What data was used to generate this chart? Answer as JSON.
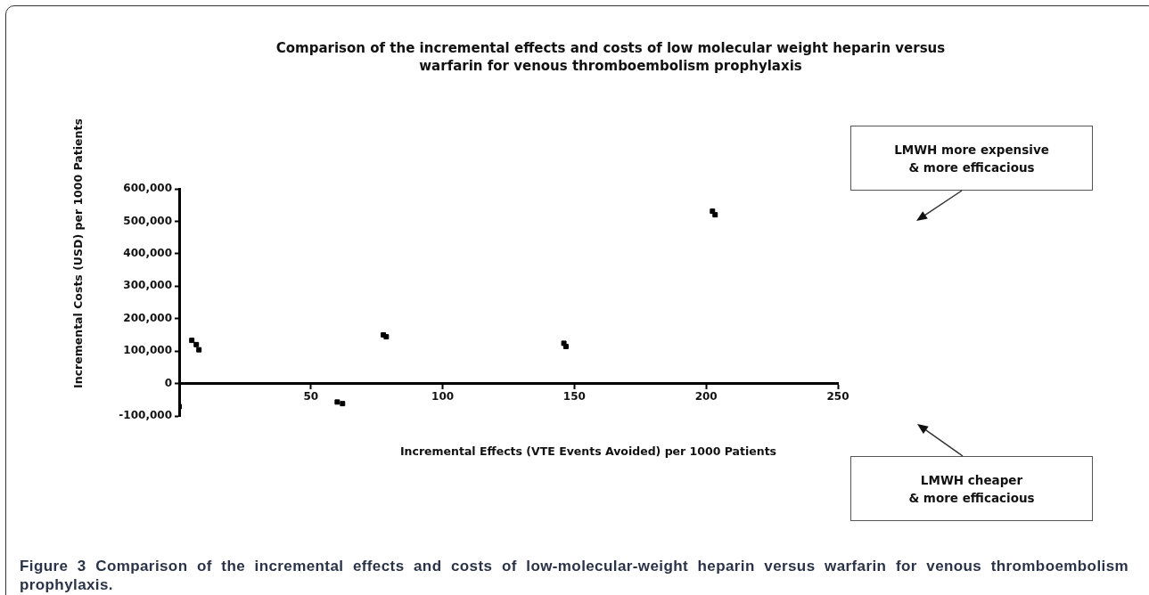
{
  "chart_data": {
    "type": "scatter",
    "title": "Comparison of the incremental effects and costs of low molecular weight heparin versus warfarin for venous thromboembolism prophylaxis",
    "xlabel": "Incremental Effects (VTE Events Avoided) per 1000 Patients",
    "ylabel": "Incremental Costs (USD) per 1000 Patients",
    "x": [
      0,
      4.8,
      6.5,
      7.5,
      60,
      62,
      77.5,
      78.6,
      146,
      146.8,
      202.4,
      203.4
    ],
    "values": [
      -71000,
      133000,
      120000,
      104000,
      -57000,
      -62000,
      150000,
      144000,
      124000,
      114000,
      531000,
      520000
    ],
    "color": "#000000",
    "marker": "square",
    "xlim": [
      0,
      250
    ],
    "xticks": [
      50,
      100,
      150,
      200,
      250
    ],
    "ylim": [
      -100000,
      600000
    ],
    "yticks": [
      {
        "value": -100000,
        "label": "-100,000"
      },
      {
        "value": 0,
        "label": "0"
      },
      {
        "value": 100000,
        "label": "100,000"
      },
      {
        "value": 200000,
        "label": "200,000"
      },
      {
        "value": 300000,
        "label": "300,000"
      },
      {
        "value": 400000,
        "label": "400,000"
      },
      {
        "value": 500000,
        "label": "500,000"
      },
      {
        "value": 600000,
        "label": "600,000"
      }
    ],
    "grid": false,
    "annotations": [
      "LMWH more expensive\n& more efficacious",
      "LMWH cheaper\n& more efficacious",
      "Figure 3 Comparison of the incremental effects and costs of low-molecular-weight heparin versus warfarin for venous thromboembolism prophylaxis."
    ]
  }
}
